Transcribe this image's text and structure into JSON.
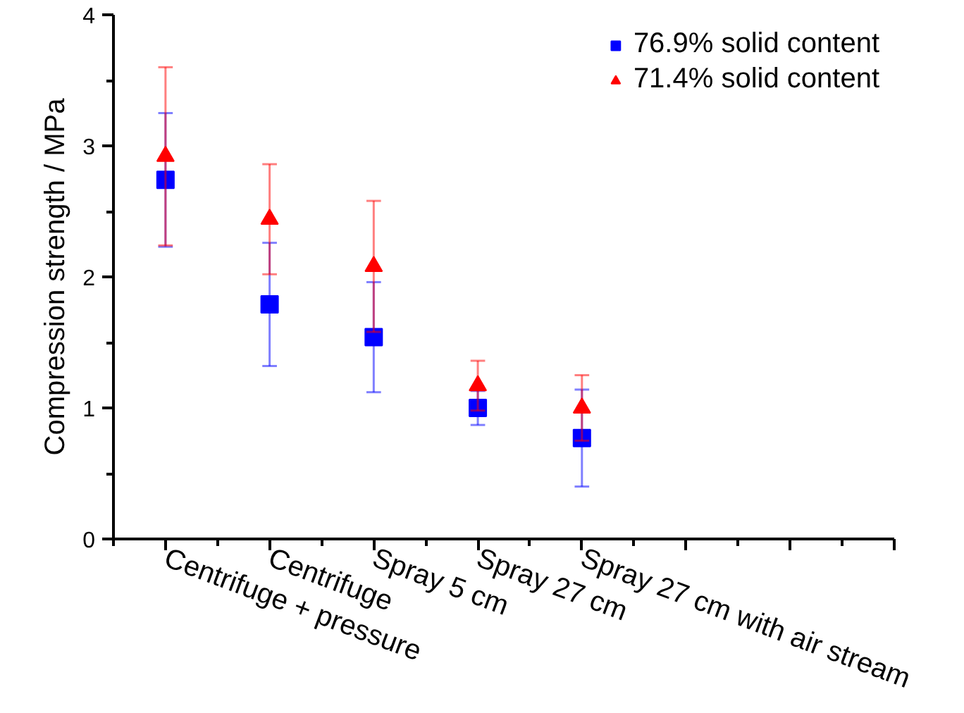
{
  "chart_data": {
    "type": "scatter",
    "ylabel": "Compression strength / MPa",
    "categories": [
      "Centrifuge + pressure",
      "Centrifuge",
      "Spray 5 cm",
      "Spray 27 cm",
      "Spray 27 cm with air stream",
      null,
      null,
      null
    ],
    "series": [
      {
        "name": "76.9% solid content",
        "color": "#0000ff",
        "marker": "square",
        "values": [
          2.74,
          1.79,
          1.54,
          1.0,
          0.77,
          null,
          null,
          null
        ],
        "errors": [
          0.51,
          0.47,
          0.42,
          0.13,
          0.37,
          null,
          null,
          null
        ]
      },
      {
        "name": "71.4% solid content",
        "color": "#ff0000",
        "marker": "triangle",
        "values": [
          2.92,
          2.44,
          2.08,
          1.17,
          1.0,
          null,
          null,
          null
        ],
        "errors": [
          0.68,
          0.42,
          0.5,
          0.19,
          0.25,
          null,
          null,
          null
        ]
      }
    ],
    "ylim": [
      0,
      4
    ],
    "yticks": [
      0,
      1,
      2,
      3,
      4
    ],
    "grid": false,
    "legend": "top right"
  }
}
